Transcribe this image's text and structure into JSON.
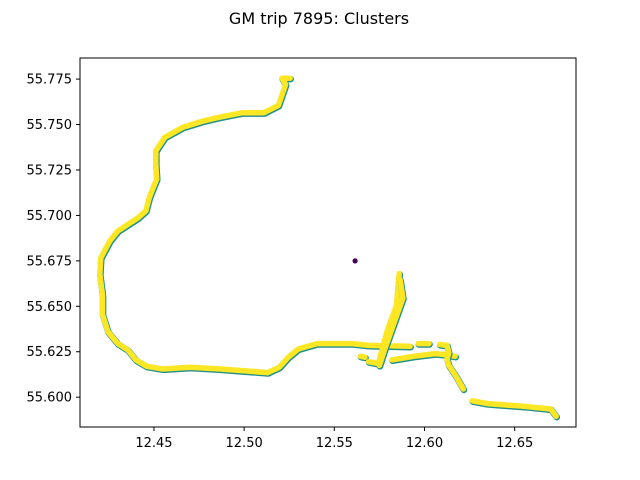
{
  "chart_data": {
    "type": "scatter",
    "title": "GM trip 7895: Clusters",
    "xlabel": "",
    "ylabel": "",
    "xlim": [
      12.409,
      12.684
    ],
    "ylim": [
      55.5836,
      55.7866
    ],
    "x_ticks": [
      "12.45",
      "12.50",
      "12.55",
      "12.60",
      "12.65"
    ],
    "y_ticks": [
      "55.600",
      "55.625",
      "55.650",
      "55.675",
      "55.700",
      "55.725",
      "55.750",
      "55.775"
    ],
    "grid": false,
    "legend": "none",
    "colors": {
      "cluster_0": "#440154",
      "cluster_1": "#fde725",
      "outline": "#21918c"
    },
    "series": [
      {
        "cluster": 1,
        "color": "#fde725",
        "segments": [
          [
            [
              12.5255,
              55.7755
            ],
            [
              12.521,
              55.7755
            ],
            [
              12.523,
              55.772
            ],
            [
              12.519,
              55.7605
            ],
            [
              12.511,
              55.7565
            ],
            [
              12.499,
              55.7565
            ],
            [
              12.486,
              55.754
            ],
            [
              12.4775,
              55.752
            ],
            [
              12.466,
              55.7485
            ],
            [
              12.456,
              55.743
            ],
            [
              12.451,
              55.7355
            ],
            [
              12.451,
              55.728
            ],
            [
              12.4515,
              55.72
            ],
            [
              12.4475,
              55.71
            ],
            [
              12.4455,
              55.7025
            ],
            [
              12.441,
              55.6985
            ],
            [
              12.43,
              55.6915
            ],
            [
              12.4255,
              55.686
            ],
            [
              12.4205,
              55.6765
            ],
            [
              12.42,
              55.6675
            ],
            [
              12.4215,
              55.656
            ],
            [
              12.4215,
              55.6455
            ],
            [
              12.4245,
              55.636
            ],
            [
              12.43,
              55.6295
            ],
            [
              12.4355,
              55.626
            ],
            [
              12.44,
              55.6205
            ],
            [
              12.446,
              55.617
            ],
            [
              12.455,
              55.6155
            ],
            [
              12.47,
              55.6165
            ],
            [
              12.487,
              55.6155
            ],
            [
              12.5,
              55.6145
            ],
            [
              12.513,
              55.6135
            ],
            [
              12.5195,
              55.6165
            ],
            [
              12.5245,
              55.622
            ],
            [
              12.53,
              55.6265
            ],
            [
              12.5405,
              55.6295
            ],
            [
              12.56,
              55.6295
            ],
            [
              12.569,
              55.6285
            ],
            [
              12.592,
              55.628
            ]
          ],
          [
            [
              12.5645,
              55.6225
            ],
            [
              12.567,
              55.622
            ]
          ],
          [
            [
              12.569,
              55.6195
            ],
            [
              12.5745,
              55.6185
            ],
            [
              12.5755,
              55.6225
            ],
            [
              12.5795,
              55.637
            ],
            [
              12.5845,
              55.6505
            ],
            [
              12.5855,
              55.6625
            ],
            [
              12.586,
              55.668
            ]
          ],
          [
            [
              12.5865,
              55.6645
            ],
            [
              12.588,
              55.6545
            ],
            [
              12.583,
              55.6405
            ],
            [
              12.5785,
              55.628
            ],
            [
              12.575,
              55.6175
            ]
          ],
          [
            [
              12.5965,
              55.6295
            ],
            [
              12.6025,
              55.6295
            ]
          ],
          [
            [
              12.582,
              55.6205
            ],
            [
              12.594,
              55.6225
            ],
            [
              12.606,
              55.624
            ],
            [
              12.611,
              55.6235
            ],
            [
              12.617,
              55.6225
            ]
          ],
          [
            [
              12.6085,
              55.629
            ],
            [
              12.6125,
              55.6285
            ],
            [
              12.6135,
              55.6245
            ],
            [
              12.6125,
              55.621
            ],
            [
              12.6135,
              55.6175
            ],
            [
              12.6175,
              55.6115
            ],
            [
              12.6215,
              55.6045
            ]
          ],
          [
            [
              12.6265,
              55.598
            ],
            [
              12.635,
              55.5965
            ],
            [
              12.655,
              55.595
            ],
            [
              12.67,
              55.5935
            ],
            [
              12.673,
              55.5895
            ]
          ]
        ]
      },
      {
        "cluster": 0,
        "color": "#440154",
        "points": [
          [
            12.5615,
            55.675
          ]
        ]
      }
    ]
  }
}
